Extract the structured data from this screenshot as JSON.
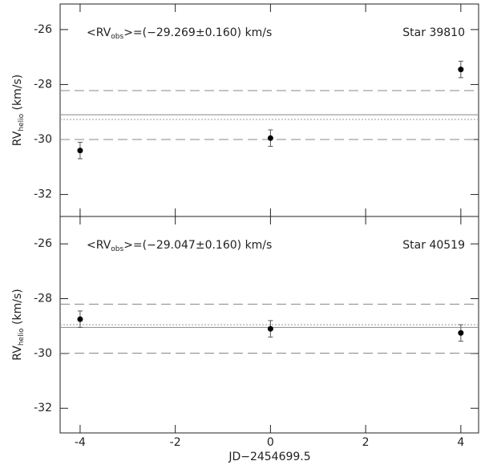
{
  "chart_data": [
    {
      "type": "scatter",
      "annotation": {
        "pre": "<RV",
        "sub": "obs",
        "post": ">=(−29.269±0.160) km/s"
      },
      "label": "Star 39810",
      "ylabel": {
        "pre": "RV",
        "sub": "helio",
        "post": " (km/s)"
      },
      "x": [
        -4,
        0,
        4
      ],
      "series": [
        {
          "color": "#000000",
          "values": [
            -30.4,
            -29.95,
            -27.45
          ],
          "errors": [
            0.3,
            0.3,
            0.3
          ]
        }
      ],
      "hlines": [
        {
          "value": -29.1,
          "style": "solid"
        },
        {
          "value": -29.27,
          "style": "dotted"
        },
        {
          "value": -28.22,
          "style": "dashed"
        },
        {
          "value": -30.0,
          "style": "dashed"
        }
      ],
      "xlim": [
        -4.42,
        4.39
      ],
      "xticks": [
        -4,
        -2,
        0,
        2,
        4
      ],
      "show_xtick_labels": false,
      "ylim": [
        -32.8,
        -25.07
      ],
      "yticks": [
        -32,
        -30,
        -28,
        -26
      ]
    },
    {
      "type": "scatter",
      "annotation": {
        "pre": "<RV",
        "sub": "obs",
        "post": ">=(−29.047±0.160) km/s"
      },
      "label": "Star 40519",
      "ylabel": {
        "pre": "RV",
        "sub": "helio",
        "post": " (km/s)"
      },
      "xlabel": "JD−2454699.5",
      "x": [
        -4,
        0,
        4
      ],
      "series": [
        {
          "color": "#000000",
          "values": [
            -28.75,
            -29.1,
            -29.25
          ],
          "errors": [
            0.3,
            0.3,
            0.3
          ]
        }
      ],
      "hlines": [
        {
          "value": -29.05,
          "style": "solid"
        },
        {
          "value": -28.95,
          "style": "dotted"
        },
        {
          "value": -28.2,
          "style": "dashed"
        },
        {
          "value": -29.99,
          "style": "dashed"
        }
      ],
      "xlim": [
        -4.42,
        4.39
      ],
      "xticks": [
        -4,
        -2,
        0,
        2,
        4
      ],
      "show_xtick_labels": true,
      "ylim": [
        -32.9,
        -25.0
      ],
      "yticks": [
        -32,
        -30,
        -28,
        -26
      ]
    }
  ]
}
